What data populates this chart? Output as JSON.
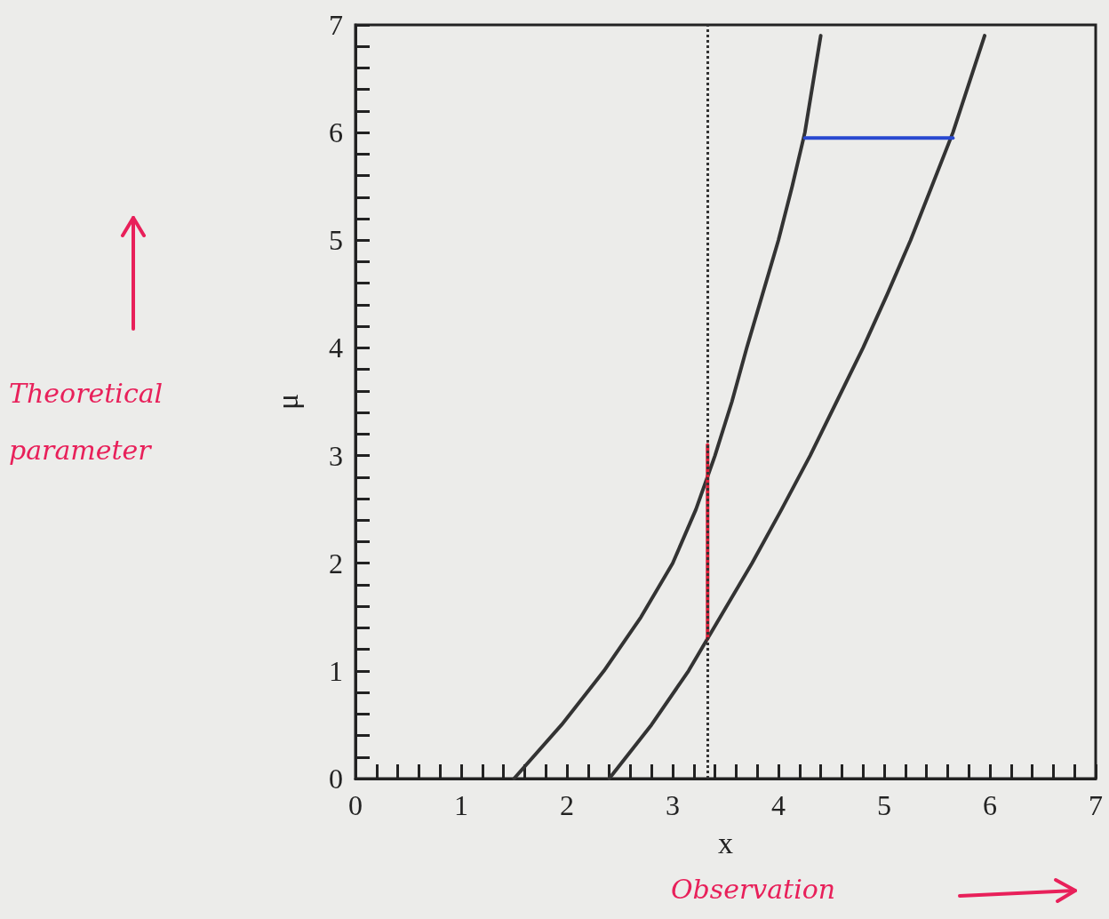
{
  "chart_data": {
    "type": "line",
    "xlabel": "x",
    "ylabel": "μ",
    "xlim": [
      0,
      7
    ],
    "ylim": [
      0,
      7
    ],
    "xticks": [
      0,
      {
        "value": 0.2,
        "label": null
      },
      {
        "value": 0.4,
        "label": null
      },
      {
        "value": 0.6,
        "label": null
      },
      {
        "value": 0.8,
        "label": null
      },
      1,
      {
        "value": 1.2,
        "label": null
      },
      {
        "value": 1.4,
        "label": null
      },
      {
        "value": 1.6,
        "label": null
      },
      {
        "value": 1.8,
        "label": null
      },
      2,
      {
        "value": 2.2,
        "label": null
      },
      {
        "value": 2.4,
        "label": null
      },
      {
        "value": 2.6,
        "label": null
      },
      {
        "value": 2.8,
        "label": null
      },
      3,
      {
        "value": 3.2,
        "label": null
      },
      {
        "value": 3.4,
        "label": null
      },
      {
        "value": 3.6,
        "label": null
      },
      {
        "value": 3.8,
        "label": null
      },
      4,
      {
        "value": 4.2,
        "label": null
      },
      {
        "value": 4.4,
        "label": null
      },
      {
        "value": 4.6,
        "label": null
      },
      {
        "value": 4.8,
        "label": null
      },
      5,
      {
        "value": 5.2,
        "label": null
      },
      {
        "value": 5.4,
        "label": null
      },
      {
        "value": 5.6,
        "label": null
      },
      {
        "value": 5.8,
        "label": null
      },
      6,
      {
        "value": 6.2,
        "label": null
      },
      {
        "value": 6.4,
        "label": null
      },
      {
        "value": 6.6,
        "label": null
      },
      {
        "value": 6.8,
        "label": null
      },
      7
    ],
    "yticks": [
      0,
      {
        "value": 0.2,
        "label": null
      },
      {
        "value": 0.4,
        "label": null
      },
      {
        "value": 0.6,
        "label": null
      },
      {
        "value": 0.8,
        "label": null
      },
      1,
      {
        "value": 1.2,
        "label": null
      },
      {
        "value": 1.4,
        "label": null
      },
      {
        "value": 1.6,
        "label": null
      },
      {
        "value": 1.8,
        "label": null
      },
      2,
      {
        "value": 2.2,
        "label": null
      },
      {
        "value": 2.4,
        "label": null
      },
      {
        "value": 2.6,
        "label": null
      },
      {
        "value": 2.8,
        "label": null
      },
      3,
      {
        "value": 3.2,
        "label": null
      },
      {
        "value": 3.4,
        "label": null
      },
      {
        "value": 3.6,
        "label": null
      },
      {
        "value": 3.8,
        "label": null
      },
      4,
      {
        "value": 4.2,
        "label": null
      },
      {
        "value": 4.4,
        "label": null
      },
      {
        "value": 4.6,
        "label": null
      },
      {
        "value": 4.8,
        "label": null
      },
      5,
      {
        "value": 5.2,
        "label": null
      },
      {
        "value": 5.4,
        "label": null
      },
      {
        "value": 5.6,
        "label": null
      },
      {
        "value": 5.8,
        "label": null
      },
      6,
      {
        "value": 6.2,
        "label": null
      },
      {
        "value": 6.4,
        "label": null
      },
      {
        "value": 6.6,
        "label": null
      },
      {
        "value": 6.8,
        "label": null
      },
      7
    ],
    "grid": false,
    "marker": "none",
    "series": [
      {
        "color": "#333333",
        "x": [
          1.5,
          1.95,
          2.35,
          2.7,
          3.0,
          3.22,
          3.4,
          3.56,
          3.7,
          3.85,
          4.0,
          4.13,
          4.25,
          4.4
        ],
        "values": [
          0,
          0.5,
          1,
          1.5,
          2,
          2.5,
          3,
          3.5,
          4,
          4.5,
          5,
          5.5,
          6,
          6.9
        ]
      },
      {
        "color": "#333333",
        "x": [
          2.4,
          2.8,
          3.15,
          3.45,
          3.75,
          4.03,
          4.3,
          4.55,
          4.8,
          5.03,
          5.25,
          5.45,
          5.65,
          5.95
        ],
        "values": [
          0,
          0.5,
          1,
          1.5,
          2,
          2.5,
          3,
          3.5,
          4,
          4.5,
          5,
          5.5,
          6,
          6.9
        ]
      },
      {
        "color": "#e0203a",
        "x": [
          3.33,
          3.33
        ],
        "values": [
          1.3,
          3.1
        ]
      },
      {
        "color": "#2848d0",
        "x": [
          4.25,
          5.65
        ],
        "values": [
          5.95,
          5.95
        ]
      }
    ],
    "ref_lines": [
      {
        "axis": "x",
        "value": 3.33,
        "color": "#333333",
        "line_style": "dotted"
      }
    ],
    "annotations": [
      "Theoretical parameter",
      "Observation"
    ]
  }
}
